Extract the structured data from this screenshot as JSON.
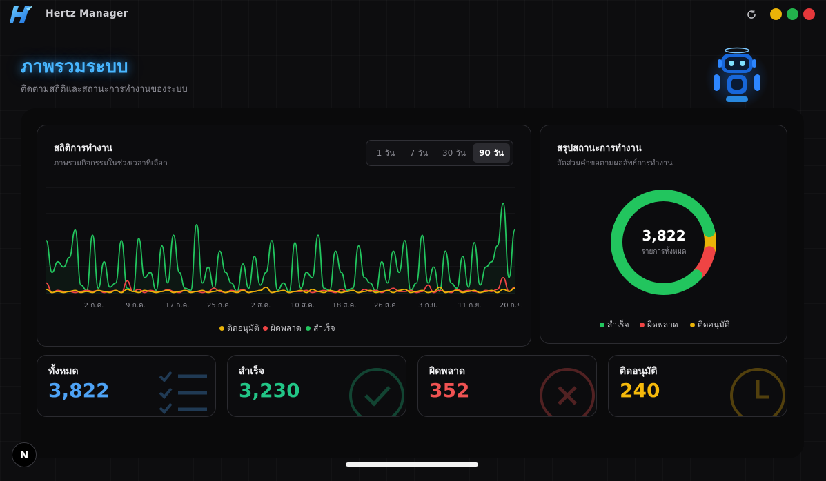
{
  "app": {
    "title": "Hertz Manager"
  },
  "window": {
    "close_color": "#e5383b",
    "maximize_color": "#22b14c",
    "minimize_color": "#eab308"
  },
  "page": {
    "title": "ภาพรวมระบบ",
    "subtitle": "ติดตามสถิติและสถานะการทำงานของระบบ"
  },
  "activity": {
    "title": "สถิติการทำงาน",
    "subtitle": "ภาพรวมกิจกรรมในช่วงเวลาที่เลือก",
    "ranges": [
      "1 วัน",
      "7 วัน",
      "30 วัน",
      "90 วัน"
    ],
    "selected_range": "90 วัน",
    "legend": [
      "ติดอนุมัติ",
      "ผิดพลาด",
      "สำเร็จ"
    ]
  },
  "summary": {
    "title": "สรุปสถานะการทำงาน",
    "subtitle": "สัดส่วนคำขอตามผลลัพธ์การทำงาน",
    "total": "3,822",
    "total_label": "รายการทั้งหมด",
    "legend": [
      "สำเร็จ",
      "ผิดพลาด",
      "ติดอนุมัติ"
    ]
  },
  "stats": {
    "total": {
      "label": "ทั้งหมด",
      "value": "3,822",
      "color": "#4ea3f5",
      "icon": "list-check-icon"
    },
    "success": {
      "label": "สำเร็จ",
      "value": "3,230",
      "color": "#22c586",
      "icon": "check-circle-icon"
    },
    "error": {
      "label": "ผิดพลาด",
      "value": "352",
      "color": "#f05252",
      "icon": "x-circle-icon"
    },
    "pending": {
      "label": "ติดอนุมัติ",
      "value": "240",
      "color": "#f5b90b",
      "icon": "clock-icon"
    }
  },
  "colors": {
    "success": "#22c55e",
    "error": "#ef4444",
    "pending": "#eab308",
    "accent": "#48b6ff"
  },
  "chart_data": [
    {
      "type": "line",
      "x_ticks": [
        "2 ก.ค.",
        "9 ก.ค.",
        "17 ก.ค.",
        "25 ก.ค.",
        "2 ส.ค.",
        "10 ส.ค.",
        "18 ส.ค.",
        "26 ส.ค.",
        "3 ก.ย.",
        "11 ก.ย.",
        "20 ก.ย."
      ],
      "series": [
        {
          "name": "สำเร็จ",
          "color": "#22c55e",
          "values": [
            50,
            20,
            30,
            25,
            34,
            60,
            8,
            3,
            55,
            5,
            30,
            6,
            10,
            50,
            5,
            2,
            52,
            15,
            20,
            3,
            45,
            10,
            55,
            20,
            5,
            3,
            65,
            10,
            25,
            5,
            40,
            20,
            10,
            2,
            28,
            5,
            35,
            8,
            20,
            50,
            3,
            10,
            2,
            48,
            5,
            20,
            15,
            55,
            5,
            3,
            40,
            20,
            3,
            5,
            45,
            15,
            10,
            2,
            30,
            10,
            40,
            20,
            50,
            3,
            10,
            55,
            10,
            25,
            2,
            40,
            10,
            5,
            35,
            6,
            48,
            8,
            25,
            30,
            45,
            85,
            15,
            60
          ]
        },
        {
          "name": "ผิดพลาด",
          "color": "#ef4444",
          "values": [
            10,
            1,
            3,
            2,
            2,
            1,
            2,
            3,
            2,
            3,
            1,
            2,
            3,
            1,
            12,
            2,
            4,
            1,
            3,
            2,
            2,
            4,
            2,
            1,
            3,
            2,
            2,
            1,
            2,
            5,
            2,
            1,
            3,
            2,
            4,
            1,
            2,
            3,
            6,
            1,
            2,
            3,
            1,
            2,
            2,
            3,
            1,
            2,
            3,
            2,
            1,
            4,
            2,
            3,
            1,
            4,
            2,
            3,
            1,
            3,
            5,
            2,
            2,
            3,
            1,
            2,
            8,
            1,
            3,
            2,
            1,
            4,
            2,
            3,
            2,
            1,
            3,
            2,
            4,
            15,
            2,
            6
          ]
        },
        {
          "name": "ติดอนุมัติ",
          "color": "#eab308",
          "values": [
            4,
            1,
            2,
            1,
            2,
            3,
            1,
            2,
            1,
            3,
            2,
            1,
            3,
            1,
            4,
            2,
            1,
            3,
            2,
            1,
            2,
            3,
            1,
            2,
            3,
            1,
            2,
            3,
            1,
            2,
            3,
            1,
            2,
            1,
            3,
            1,
            2,
            3,
            6,
            1,
            2,
            3,
            1,
            2,
            3,
            1,
            4,
            2,
            1,
            3,
            2,
            1,
            2,
            3,
            1,
            2,
            3,
            1,
            2,
            3,
            1,
            3,
            4,
            1,
            2,
            3,
            1,
            2,
            6,
            1,
            2,
            3,
            1,
            2,
            3,
            1,
            2,
            3,
            1,
            4,
            2,
            5
          ]
        }
      ],
      "legend_position": "bottom",
      "grid": true
    },
    {
      "type": "pie",
      "labels": [
        "สำเร็จ",
        "ผิดพลาด",
        "ติดอนุมัติ"
      ],
      "values": [
        3230,
        352,
        240
      ],
      "colors": [
        "#22c55e",
        "#ef4444",
        "#eab308"
      ],
      "center_text": "3,822"
    }
  ]
}
